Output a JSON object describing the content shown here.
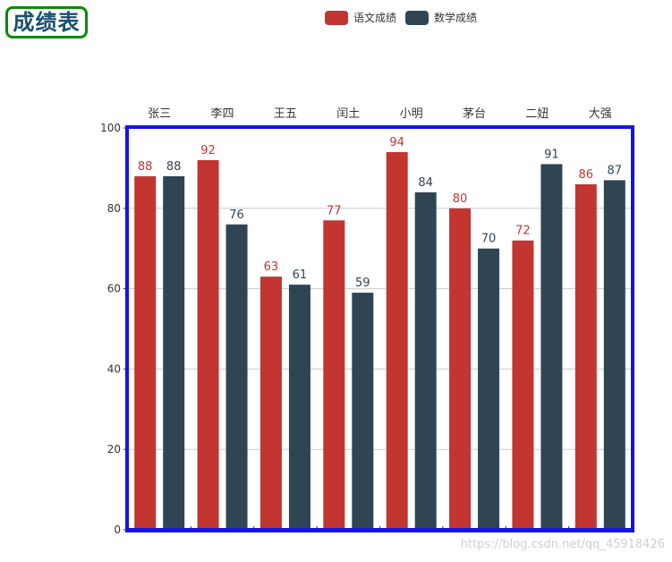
{
  "title": "成绩表",
  "watermark": "https://blog.csdn.net/qq_45918426",
  "chart_data": {
    "type": "bar",
    "categories": [
      "张三",
      "李四",
      "王五",
      "闰土",
      "小明",
      "茅台",
      "二妞",
      "大强"
    ],
    "series": [
      {
        "name": "语文成绩",
        "color": "#c23531",
        "values": [
          88,
          92,
          63,
          77,
          94,
          80,
          72,
          86
        ]
      },
      {
        "name": "数学成绩",
        "color": "#2f4554",
        "values": [
          88,
          76,
          61,
          59,
          84,
          70,
          91,
          87
        ]
      }
    ],
    "ylim": [
      0,
      100
    ],
    "yticks": [
      0,
      20,
      40,
      60,
      80,
      100
    ],
    "xaxis_position": "top",
    "legend_position": "top-center",
    "grid": true,
    "border_color": "#1414e6",
    "grid_color": "#cccccc"
  }
}
